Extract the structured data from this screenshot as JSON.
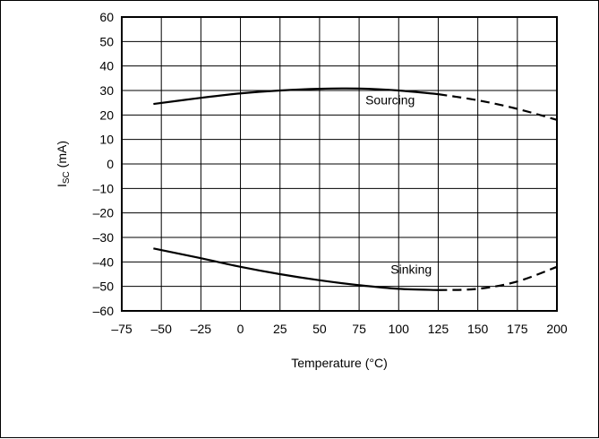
{
  "chart_data": {
    "type": "line",
    "title": "",
    "xlabel": "Temperature (°C)",
    "ylabel_main": "I",
    "ylabel_sub": "SC",
    "ylabel_unit": " (mA)",
    "xlim": [
      -75,
      200
    ],
    "ylim": [
      -60,
      60
    ],
    "x_ticks": [
      -75,
      -50,
      -25,
      0,
      25,
      50,
      75,
      100,
      125,
      150,
      175,
      200
    ],
    "y_ticks": [
      60,
      50,
      40,
      30,
      20,
      10,
      0,
      -10,
      -20,
      -30,
      -40,
      -50,
      -60
    ],
    "x_tick_labels": [
      "–75",
      "–50",
      "–25",
      "0",
      "25",
      "50",
      "75",
      "100",
      "125",
      "150",
      "175",
      "200"
    ],
    "y_tick_labels": [
      "60",
      "50",
      "40",
      "30",
      "20",
      "10",
      "0",
      "–10",
      "–20",
      "–30",
      "–40",
      "–50",
      "–60"
    ],
    "grid": true,
    "series": [
      {
        "name": "Sourcing",
        "solid_x": [
          -55,
          -25,
          0,
          25,
          50,
          75,
          100,
          125
        ],
        "solid_y": [
          24.5,
          27,
          28.8,
          30,
          30.7,
          30.8,
          30,
          28.5
        ],
        "dashed_x": [
          125,
          150,
          175,
          200
        ],
        "dashed_y": [
          28.5,
          26,
          22.5,
          18
        ]
      },
      {
        "name": "Sinking",
        "solid_x": [
          -55,
          -25,
          0,
          25,
          50,
          75,
          100,
          125
        ],
        "solid_y": [
          -34.5,
          -38.5,
          -42,
          -45,
          -47.5,
          -49.5,
          -51,
          -51.5
        ],
        "dashed_x": [
          125,
          150,
          175,
          200
        ],
        "dashed_y": [
          -51.5,
          -51,
          -48,
          -42
        ]
      }
    ]
  }
}
